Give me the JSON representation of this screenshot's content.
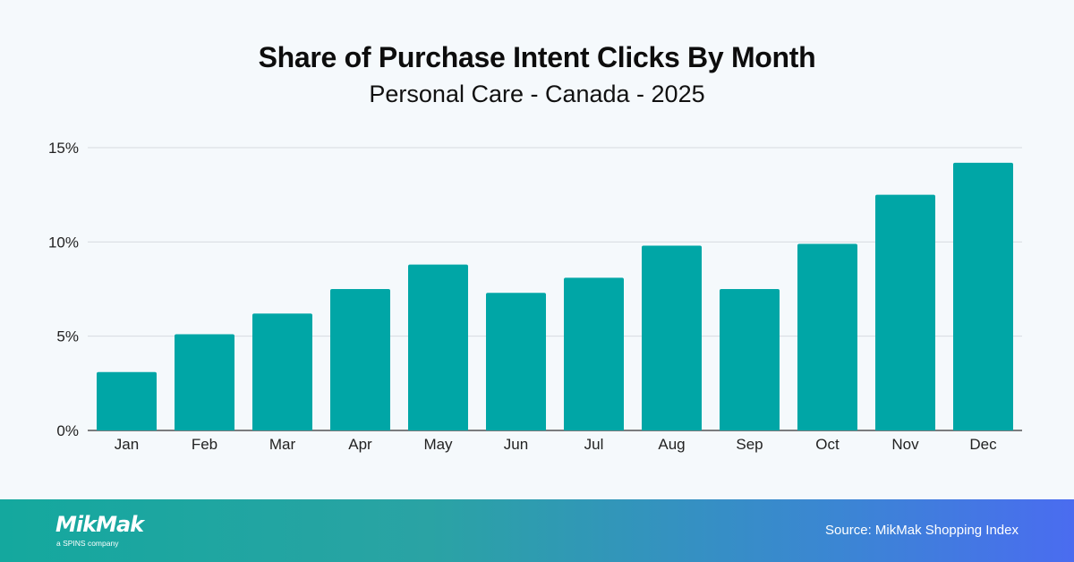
{
  "chart_data": {
    "type": "bar",
    "title": "Share of Purchase Intent Clicks By Month",
    "subtitle": "Personal Care - Canada - 2025",
    "categories": [
      "Jan",
      "Feb",
      "Mar",
      "Apr",
      "May",
      "Jun",
      "Jul",
      "Aug",
      "Sep",
      "Oct",
      "Nov",
      "Dec"
    ],
    "values": [
      3.1,
      5.1,
      6.2,
      7.5,
      8.8,
      7.3,
      8.1,
      9.8,
      7.5,
      9.9,
      12.5,
      14.2
    ],
    "yticks": [
      0,
      5,
      10,
      15
    ],
    "ytick_labels": [
      "0%",
      "5%",
      "10%",
      "15%"
    ],
    "ylim": [
      0,
      15
    ],
    "xlabel": "",
    "ylabel": "",
    "grid": "horizontal",
    "bar_color": "#00a6a6"
  },
  "footer": {
    "logo_text": "MikMak",
    "logo_subtext": "a SPINS company",
    "source": "Source: MikMak Shopping Index"
  }
}
